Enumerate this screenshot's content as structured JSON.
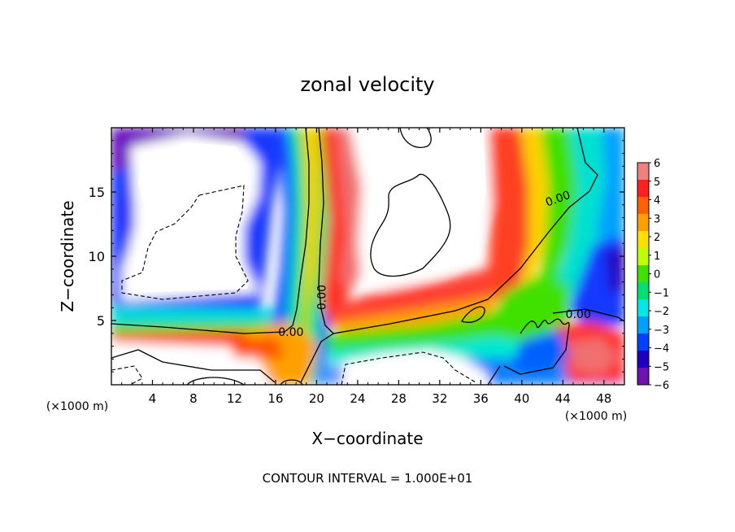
{
  "chart_data": {
    "type": "heatmap",
    "title": "zonal velocity",
    "xlabel": "X−coordinate",
    "ylabel": "Z−coordinate",
    "x_unit_left": "(×1000 m)",
    "x_unit_right": "(×1000 m)",
    "footer": "CONTOUR INTERVAL = 1.000E+01",
    "xlim": [
      0,
      50
    ],
    "ylim": [
      0,
      20
    ],
    "x_ticks": [
      4,
      8,
      12,
      16,
      20,
      24,
      28,
      32,
      36,
      40,
      44,
      48
    ],
    "x_tick_labels": [
      "4",
      "8",
      "12",
      "16",
      "20",
      "24",
      "28",
      "32",
      "36",
      "40",
      "44",
      "48"
    ],
    "y_ticks": [
      5,
      10,
      15
    ],
    "y_tick_labels": [
      "5",
      "10",
      "15"
    ],
    "colorbar": {
      "values": [
        6,
        5,
        4,
        3,
        2,
        1,
        0,
        -1,
        -2,
        -3,
        -4,
        -5,
        -6
      ],
      "labels": [
        "6",
        "5",
        "4",
        "3",
        "2",
        "1",
        "0",
        "−1",
        "−2",
        "−3",
        "−4",
        "−5",
        "−6"
      ],
      "colors": [
        "#f08080",
        "#ff2020",
        "#ff6000",
        "#ffa000",
        "#ffe000",
        "#c0ff00",
        "#40e000",
        "#00e070",
        "#00e8e8",
        "#00a0ff",
        "#0040ff",
        "#2000c0",
        "#7010b0"
      ]
    },
    "contour_labels": [
      {
        "text": "0.00",
        "x": 20.5,
        "z": 6.8,
        "rotate": -90
      },
      {
        "text": "0.00",
        "x": 17.5,
        "z": 4.1,
        "rotate": 0
      },
      {
        "text": "0.00",
        "x": 43.5,
        "z": 14.5,
        "rotate": -20
      },
      {
        "text": "0.00",
        "x": 45.5,
        "z": 5.5,
        "rotate": 0
      }
    ]
  }
}
